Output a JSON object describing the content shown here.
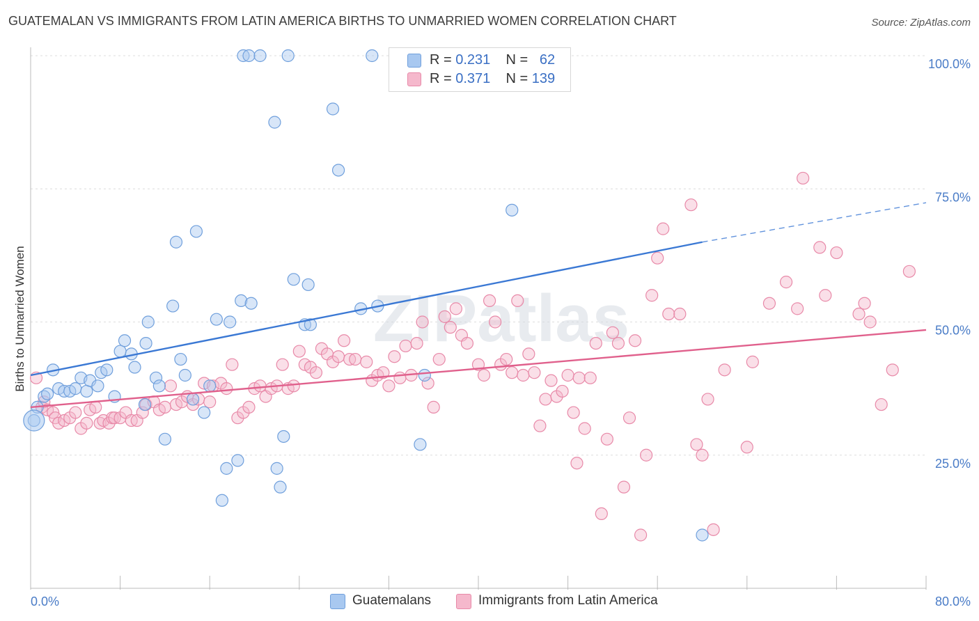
{
  "title": "GUATEMALAN VS IMMIGRANTS FROM LATIN AMERICA BIRTHS TO UNMARRIED WOMEN CORRELATION CHART",
  "source": "Source: ZipAtlas.com",
  "watermark": "ZIPatlas",
  "legend_top": {
    "rows": [
      {
        "r_label": "R =",
        "r_value": "0.231",
        "n_label": "N =",
        "n_value": "62"
      },
      {
        "r_label": "R =",
        "r_value": "0.371",
        "n_label": "N =",
        "n_value": "139"
      }
    ]
  },
  "chart_data": {
    "type": "scatter",
    "title": "GUATEMALAN VS IMMIGRANTS FROM LATIN AMERICA BIRTHS TO UNMARRIED WOMEN CORRELATION CHART",
    "xlabel": "",
    "ylabel": "Births to Unmarried Women",
    "xlim": [
      0,
      80
    ],
    "ylim": [
      0,
      103
    ],
    "x_tick_labels": [
      "0.0%",
      "80.0%"
    ],
    "y_tick_labels": [
      "100.0%",
      "75.0%",
      "50.0%",
      "25.0%"
    ],
    "y_ticks": [
      100,
      75,
      50,
      25
    ],
    "grid": true,
    "legend_placement": "bottom",
    "series": [
      {
        "name": "Guatemalans",
        "color": "#a8c8f0",
        "stroke": "#6f9fdc",
        "R": 0.231,
        "N": 62,
        "trend": {
          "x": [
            0,
            60
          ],
          "y": [
            40.0,
            65.0
          ],
          "dashed_to": [
            80,
            72.4
          ],
          "color": "#3a78d4"
        },
        "points": [
          [
            0.3,
            31.5
          ],
          [
            0.6,
            34
          ],
          [
            1.2,
            36
          ],
          [
            1.5,
            36.5
          ],
          [
            2,
            41
          ],
          [
            2.5,
            37.5
          ],
          [
            3,
            37
          ],
          [
            3.5,
            37
          ],
          [
            4,
            37.5
          ],
          [
            4.5,
            39.5
          ],
          [
            5,
            37
          ],
          [
            5.3,
            39
          ],
          [
            6,
            38
          ],
          [
            6.3,
            40.5
          ],
          [
            6.8,
            41
          ],
          [
            7.5,
            36
          ],
          [
            8,
            44.5
          ],
          [
            8.4,
            46.5
          ],
          [
            9,
            44
          ],
          [
            9.3,
            41.5
          ],
          [
            10.2,
            34.5
          ],
          [
            10.3,
            46
          ],
          [
            10.5,
            50
          ],
          [
            11.2,
            39.5
          ],
          [
            11.5,
            38
          ],
          [
            12,
            28
          ],
          [
            12.7,
            53
          ],
          [
            13,
            65
          ],
          [
            13.4,
            43
          ],
          [
            13.8,
            40
          ],
          [
            14.5,
            35.5
          ],
          [
            14.8,
            67
          ],
          [
            15.5,
            33
          ],
          [
            16,
            38
          ],
          [
            16.6,
            50.5
          ],
          [
            17.1,
            16.5
          ],
          [
            17.5,
            22.5
          ],
          [
            17.8,
            50
          ],
          [
            18.5,
            24
          ],
          [
            18.8,
            54
          ],
          [
            19,
            100
          ],
          [
            19.5,
            100
          ],
          [
            19.7,
            53.5
          ],
          [
            20.5,
            100
          ],
          [
            21.8,
            87.5
          ],
          [
            22,
            22.5
          ],
          [
            22.3,
            19
          ],
          [
            22.6,
            28.5
          ],
          [
            23,
            100
          ],
          [
            23.5,
            58
          ],
          [
            24.5,
            49.5
          ],
          [
            24.8,
            57
          ],
          [
            25,
            49.5
          ],
          [
            27,
            90
          ],
          [
            27.5,
            78.5
          ],
          [
            29.5,
            52.5
          ],
          [
            30.5,
            100
          ],
          [
            31,
            53
          ],
          [
            34.8,
            27
          ],
          [
            35.2,
            40
          ],
          [
            43,
            71
          ],
          [
            60,
            10
          ]
        ]
      },
      {
        "name": "Immigrants from Latin America",
        "color": "#f5b8cc",
        "stroke": "#e889a8",
        "R": 0.371,
        "N": 139,
        "trend": {
          "x": [
            0,
            80
          ],
          "y": [
            34.0,
            48.5
          ],
          "color": "#e0608c"
        },
        "points": [
          [
            0.5,
            39.5
          ],
          [
            1,
            34
          ],
          [
            1.2,
            35
          ],
          [
            1.5,
            33.5
          ],
          [
            2,
            33
          ],
          [
            2.2,
            32
          ],
          [
            2.5,
            31
          ],
          [
            3,
            31.5
          ],
          [
            3.5,
            32
          ],
          [
            4,
            33
          ],
          [
            4.5,
            30
          ],
          [
            5,
            31
          ],
          [
            5.3,
            33.5
          ],
          [
            5.8,
            34
          ],
          [
            6.2,
            31
          ],
          [
            6.5,
            31.5
          ],
          [
            7,
            31
          ],
          [
            7.3,
            32
          ],
          [
            7.5,
            32
          ],
          [
            8,
            32
          ],
          [
            8.5,
            33
          ],
          [
            9,
            31.5
          ],
          [
            9.5,
            31.5
          ],
          [
            10,
            33
          ],
          [
            10.3,
            34.5
          ],
          [
            11,
            35
          ],
          [
            11.5,
            33.5
          ],
          [
            12,
            34
          ],
          [
            12.5,
            38
          ],
          [
            13,
            34.5
          ],
          [
            13.5,
            35
          ],
          [
            14,
            36
          ],
          [
            14.5,
            34.5
          ],
          [
            15,
            35.5
          ],
          [
            15.5,
            38.5
          ],
          [
            16,
            35
          ],
          [
            16.3,
            38
          ],
          [
            17,
            38.5
          ],
          [
            17.5,
            37.5
          ],
          [
            18,
            42
          ],
          [
            18.5,
            32
          ],
          [
            19,
            33
          ],
          [
            19.5,
            34
          ],
          [
            20,
            37.5
          ],
          [
            20.5,
            38
          ],
          [
            21,
            36
          ],
          [
            21.5,
            37.5
          ],
          [
            22,
            38
          ],
          [
            22.5,
            42
          ],
          [
            23,
            37.5
          ],
          [
            23.5,
            38
          ],
          [
            24,
            44.5
          ],
          [
            24.5,
            42
          ],
          [
            25,
            41.5
          ],
          [
            25.5,
            40.5
          ],
          [
            26,
            45
          ],
          [
            26.5,
            44
          ],
          [
            27,
            42.5
          ],
          [
            27.5,
            43.5
          ],
          [
            28,
            46.5
          ],
          [
            28.5,
            43
          ],
          [
            29,
            43
          ],
          [
            30,
            42.5
          ],
          [
            30.5,
            39
          ],
          [
            31,
            40
          ],
          [
            31.5,
            40.5
          ],
          [
            32,
            38
          ],
          [
            32.5,
            43.5
          ],
          [
            33,
            39.5
          ],
          [
            33.5,
            45.5
          ],
          [
            34,
            40
          ],
          [
            34.5,
            46
          ],
          [
            35,
            50
          ],
          [
            35.5,
            38.5
          ],
          [
            36,
            34
          ],
          [
            36.5,
            43
          ],
          [
            37,
            51
          ],
          [
            37.5,
            49
          ],
          [
            38,
            52.5
          ],
          [
            38.5,
            47.5
          ],
          [
            39,
            46
          ],
          [
            40,
            42
          ],
          [
            40.5,
            40
          ],
          [
            41,
            54
          ],
          [
            41.5,
            50
          ],
          [
            42,
            42
          ],
          [
            42.5,
            43
          ],
          [
            43,
            40.5
          ],
          [
            43.5,
            54
          ],
          [
            44,
            40
          ],
          [
            44.5,
            44
          ],
          [
            45,
            40.5
          ],
          [
            45.5,
            30.5
          ],
          [
            46,
            35.5
          ],
          [
            46.5,
            39
          ],
          [
            47,
            36
          ],
          [
            47.5,
            37
          ],
          [
            48,
            40
          ],
          [
            48.5,
            33
          ],
          [
            48.8,
            23.5
          ],
          [
            49,
            39.5
          ],
          [
            49.5,
            30
          ],
          [
            50,
            39.5
          ],
          [
            50.5,
            46
          ],
          [
            51,
            14
          ],
          [
            51.5,
            28
          ],
          [
            52,
            48
          ],
          [
            52.5,
            46
          ],
          [
            53,
            19
          ],
          [
            53.5,
            32
          ],
          [
            54,
            46.5
          ],
          [
            54.5,
            10
          ],
          [
            55,
            25
          ],
          [
            55.5,
            55
          ],
          [
            56,
            62
          ],
          [
            56.5,
            67.5
          ],
          [
            57,
            51.5
          ],
          [
            58,
            51.5
          ],
          [
            59,
            72
          ],
          [
            59.5,
            27
          ],
          [
            60,
            25
          ],
          [
            60.5,
            35.5
          ],
          [
            61,
            11
          ],
          [
            62,
            41
          ],
          [
            64,
            26.5
          ],
          [
            64.5,
            42.5
          ],
          [
            66,
            53.5
          ],
          [
            67.5,
            57.5
          ],
          [
            68.5,
            52.5
          ],
          [
            69,
            77
          ],
          [
            70.5,
            64
          ],
          [
            71,
            55
          ],
          [
            72,
            63
          ],
          [
            74,
            51.5
          ],
          [
            74.5,
            53.5
          ],
          [
            75,
            50
          ],
          [
            76,
            34.5
          ],
          [
            77,
            41
          ],
          [
            78.5,
            59.5
          ]
        ]
      }
    ]
  }
}
